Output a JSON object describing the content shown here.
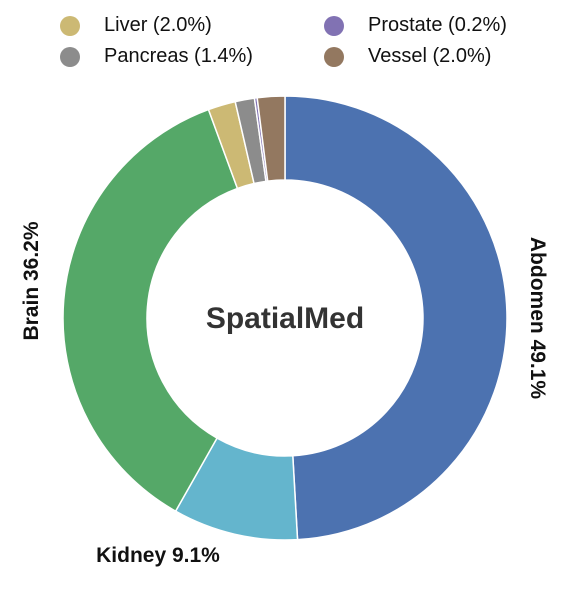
{
  "chart_data": {
    "type": "pie",
    "style": "donut",
    "center_label": "SpatialMed",
    "start": "12 o'clock",
    "direction": "clockwise",
    "slices": [
      {
        "name": "Abdomen",
        "value": 49.1,
        "label": "Abdomen 49.1%",
        "color": "#4c72b0",
        "in_legend": false,
        "on_chart": true
      },
      {
        "name": "Kidney",
        "value": 9.1,
        "label": "Kidney 9.1%",
        "color": "#64b5cd",
        "in_legend": false,
        "on_chart": true
      },
      {
        "name": "Brain",
        "value": 36.2,
        "label": "Brain 36.2%",
        "color": "#55a868",
        "in_legend": false,
        "on_chart": true
      },
      {
        "name": "Liver",
        "value": 2.0,
        "label": "Liver (2.0%)",
        "color": "#ccb974",
        "in_legend": true,
        "on_chart": false
      },
      {
        "name": "Pancreas",
        "value": 1.4,
        "label": "Pancreas (1.4%)",
        "color": "#8c8c8c",
        "in_legend": true,
        "on_chart": false
      },
      {
        "name": "Prostate",
        "value": 0.2,
        "label": "Prostate (0.2%)",
        "color": "#8172b3",
        "in_legend": true,
        "on_chart": false
      },
      {
        "name": "Vessel",
        "value": 2.0,
        "label": "Vessel (2.0%)",
        "color": "#937860",
        "in_legend": true,
        "on_chart": false
      }
    ],
    "legend": {
      "placement": "top",
      "columns": 2,
      "entries": [
        "Liver (2.0%)",
        "Prostate (0.2%)",
        "Pancreas (1.4%)",
        "Vessel (2.0%)"
      ]
    }
  }
}
